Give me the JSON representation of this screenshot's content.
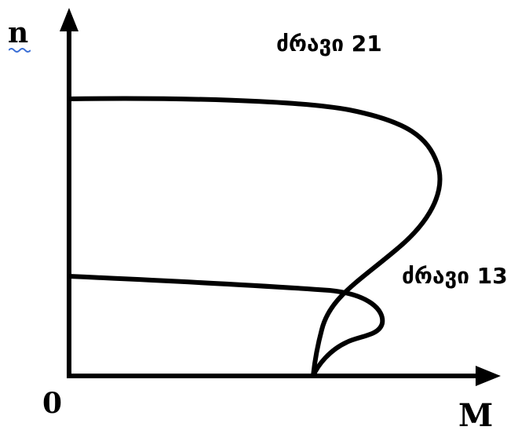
{
  "axes": {
    "y_label": "n",
    "x_label": "M",
    "origin_label": "0"
  },
  "curves": [
    {
      "label": "ძრავი 21"
    },
    {
      "label": "ძრავი 13"
    }
  ],
  "colors": {
    "line": "#000000",
    "spellcheck_underline": "#3b6fd6"
  }
}
